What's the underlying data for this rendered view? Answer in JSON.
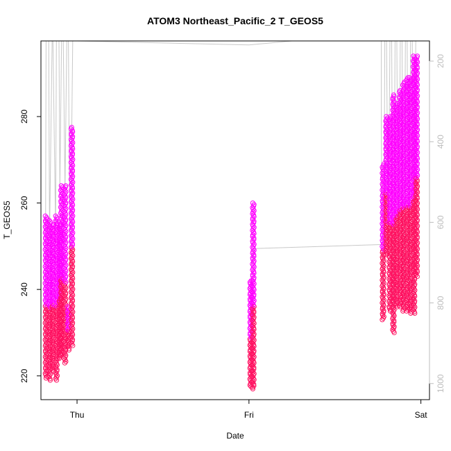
{
  "chart_data": {
    "type": "scatter",
    "title": "ATOM3 Northeast_Pacific_2 T_GEOS5",
    "xlabel": "Date",
    "ylabel": "T_GEOS5",
    "xlim": [
      -0.21,
      2.05
    ],
    "ylim": [
      214.5,
      297.5
    ],
    "y2lim": [
      1040,
      150
    ],
    "x_ticks": [
      {
        "value": 0,
        "label": "Thu"
      },
      {
        "value": 1,
        "label": "Fri"
      },
      {
        "value": 2,
        "label": "Sat"
      }
    ],
    "y_ticks": [
      220,
      240,
      260,
      280
    ],
    "y2_ticks": [
      200,
      400,
      600,
      800,
      1000
    ],
    "grid": false,
    "legend": "none",
    "colors": {
      "low_pressure": "#ff00ff",
      "high_pressure": "#ff1060",
      "pressure_line": "#c8c8c8"
    },
    "series": [
      {
        "values": [
          {
            "x": -0.18,
            "y_range": [
              219.5,
              257.0
            ],
            "pressure_range": [
              940,
              620
            ]
          },
          {
            "x": -0.16,
            "y_range": [
              219.0,
              256.0
            ],
            "pressure_range": [
              940,
              630
            ]
          },
          {
            "x": -0.14,
            "y_range": [
              221.0,
              255.0
            ],
            "pressure_range": [
              920,
              630
            ]
          },
          {
            "x": -0.12,
            "y_range": [
              219.0,
              257.0
            ],
            "pressure_range": [
              945,
              610
            ]
          },
          {
            "x": -0.1,
            "y_range": [
              224.0,
              255.0
            ],
            "pressure_range": [
              900,
              630
            ]
          },
          {
            "x": -0.09,
            "y_range": [
              225.0,
              264.0
            ],
            "pressure_range": [
              890,
              520
            ]
          },
          {
            "x": -0.07,
            "y_range": [
              223.0,
              264.0
            ],
            "pressure_range": [
              905,
              520
            ]
          },
          {
            "x": -0.05,
            "y_range": [
              226.0,
              236.0
            ],
            "pressure_range": [
              880,
              790
            ]
          },
          {
            "x": -0.03,
            "y_range": [
              227.0,
              277.5
            ],
            "pressure_range": [
              870,
              350
            ]
          },
          {
            "x": 1.01,
            "y_range": [
              217.5,
              242.0
            ],
            "pressure_range": [
              975,
              740
            ]
          },
          {
            "x": 1.025,
            "y_range": [
              217.0,
              260.0
            ],
            "pressure_range": [
              980,
              560
            ]
          },
          {
            "x": 1.78,
            "y_range": [
              233.0,
              269.0
            ],
            "pressure_range": [
              830,
              475
            ]
          },
          {
            "x": 1.8,
            "y_range": [
              248.0,
              280.0
            ],
            "pressure_range": [
              680,
              325
            ]
          },
          {
            "x": 1.82,
            "y_range": [
              235.0,
              280.0
            ],
            "pressure_range": [
              820,
              325
            ]
          },
          {
            "x": 1.84,
            "y_range": [
              230.0,
              285.0
            ],
            "pressure_range": [
              870,
              270
            ]
          },
          {
            "x": 1.86,
            "y_range": [
              236.0,
              283.0
            ],
            "pressure_range": [
              810,
              290
            ]
          },
          {
            "x": 1.88,
            "y_range": [
              236.0,
              286.0
            ],
            "pressure_range": [
              810,
              260
            ]
          },
          {
            "x": 1.9,
            "y_range": [
              235.0,
              288.0
            ],
            "pressure_range": [
              820,
              240
            ]
          },
          {
            "x": 1.92,
            "y_range": [
              235.0,
              289.0
            ],
            "pressure_range": [
              820,
              230
            ]
          },
          {
            "x": 1.94,
            "y_range": [
              234.5,
              289.0
            ],
            "pressure_range": [
              830,
              230
            ]
          },
          {
            "x": 1.96,
            "y_range": [
              234.5,
              294.0
            ],
            "pressure_range": [
              830,
              185
            ]
          },
          {
            "x": 1.975,
            "y_range": [
              243.0,
              294.0
            ],
            "pressure_range": [
              740,
              180
            ]
          }
        ]
      }
    ],
    "pressure_line": [
      {
        "x": -0.185,
        "p": 940
      },
      {
        "x": -0.18,
        "p": 150
      },
      {
        "x": -0.165,
        "p": 150
      },
      {
        "x": -0.16,
        "p": 640
      },
      {
        "x": -0.145,
        "p": 150
      },
      {
        "x": -0.14,
        "p": 150
      },
      {
        "x": -0.125,
        "p": 620
      },
      {
        "x": -0.12,
        "p": 150
      },
      {
        "x": -0.105,
        "p": 150
      },
      {
        "x": -0.1,
        "p": 520
      },
      {
        "x": -0.09,
        "p": 150
      },
      {
        "x": -0.08,
        "p": 150
      },
      {
        "x": -0.07,
        "p": 520
      },
      {
        "x": -0.06,
        "p": 150
      },
      {
        "x": -0.05,
        "p": 150
      },
      {
        "x": -0.04,
        "p": 800
      },
      {
        "x": -0.03,
        "p": 340
      },
      {
        "x": -0.025,
        "p": 150
      },
      {
        "x": 0.0,
        "p": 150
      },
      {
        "x": 1.0,
        "p": 160
      },
      {
        "x": 1.25,
        "p": 150
      },
      {
        "x": 1.77,
        "p": 150
      },
      {
        "x": 1.77,
        "p": 380
      },
      {
        "x": 1.78,
        "p": 830
      },
      {
        "x": 1.785,
        "p": 690
      },
      {
        "x": 1.79,
        "p": 150
      },
      {
        "x": 1.8,
        "p": 150
      },
      {
        "x": 1.81,
        "p": 680
      },
      {
        "x": 1.82,
        "p": 150
      },
      {
        "x": 1.83,
        "p": 150
      },
      {
        "x": 1.84,
        "p": 860
      },
      {
        "x": 1.85,
        "p": 150
      },
      {
        "x": 1.86,
        "p": 150
      },
      {
        "x": 1.87,
        "p": 800
      },
      {
        "x": 1.88,
        "p": 150
      },
      {
        "x": 1.89,
        "p": 150
      },
      {
        "x": 1.9,
        "p": 820
      },
      {
        "x": 1.91,
        "p": 150
      },
      {
        "x": 1.92,
        "p": 150
      },
      {
        "x": 1.93,
        "p": 820
      },
      {
        "x": 1.94,
        "p": 150
      },
      {
        "x": 1.95,
        "p": 150
      },
      {
        "x": 1.96,
        "p": 830
      },
      {
        "x": 1.97,
        "p": 150
      },
      {
        "x": 2.05,
        "p": 150
      }
    ],
    "pressure_line_fri": [
      {
        "x": 1.01,
        "p": 700
      },
      {
        "x": 1.02,
        "p": 700
      },
      {
        "x": 1.03,
        "p": 665
      },
      {
        "x": 1.78,
        "p": 655
      }
    ]
  }
}
